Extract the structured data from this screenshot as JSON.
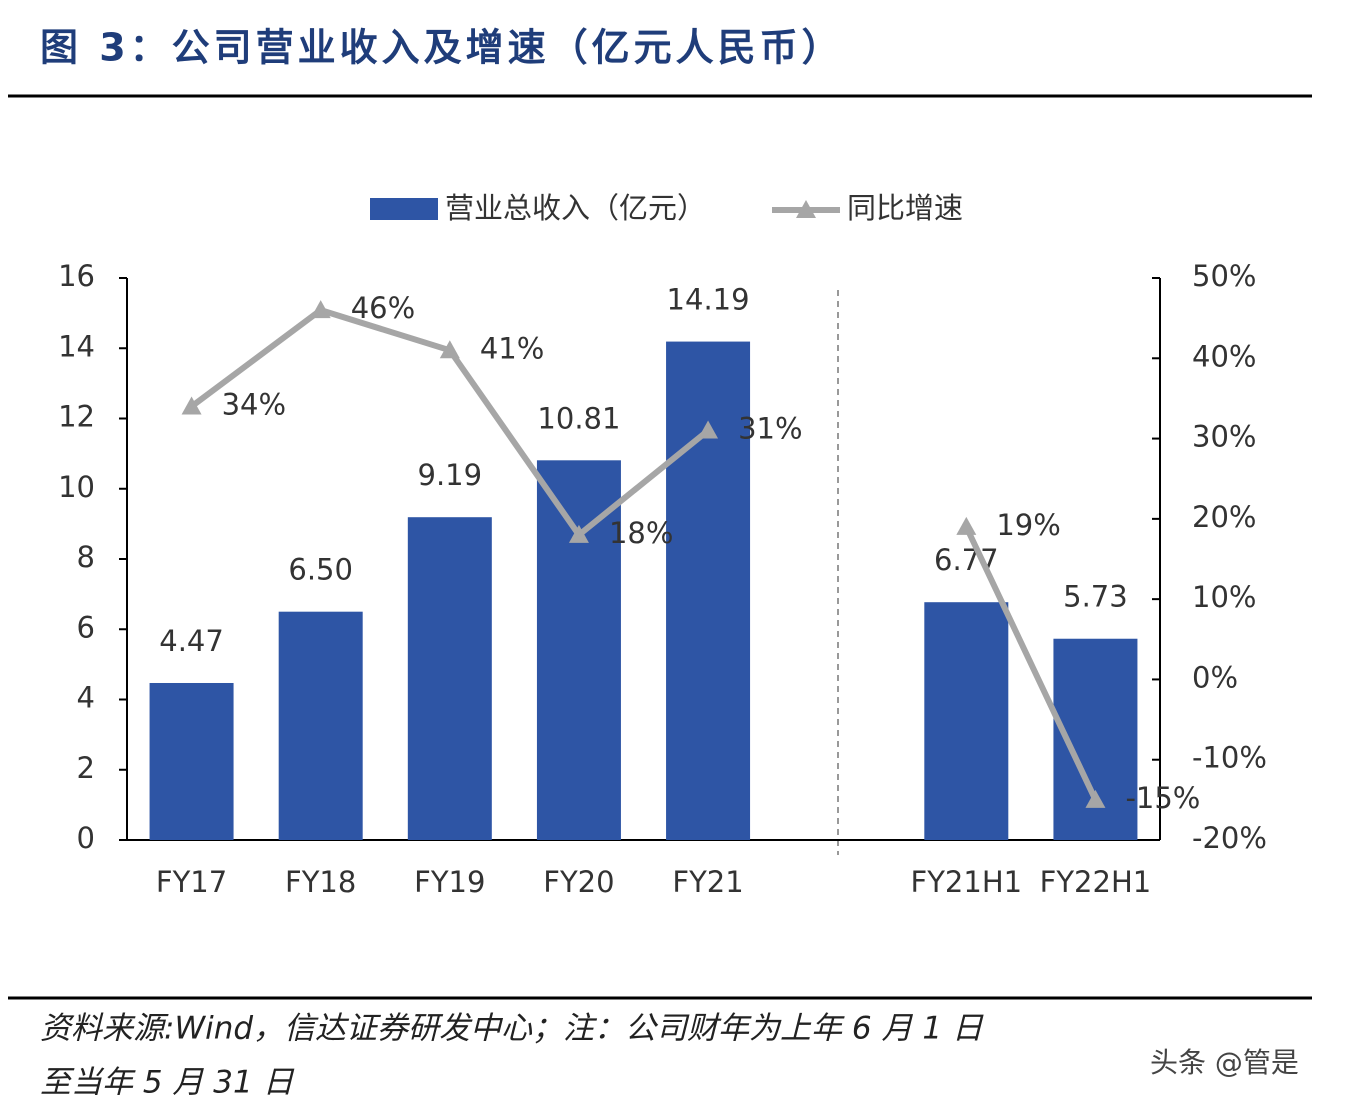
{
  "title": "图 3：公司营业收入及增速（亿元人民币）",
  "source": [
    "资料来源:Wind，信达证券研发中心；注：公司财年为上年 6 月 1 日",
    "至当年 5 月 31 日"
  ],
  "watermark": "头条 @管是",
  "chart_data": {
    "type": "bar",
    "categories": [
      "FY17",
      "FY18",
      "FY19",
      "FY20",
      "FY21",
      null,
      "FY21H1",
      "FY22H1"
    ],
    "series": [
      {
        "name": "营业总收入（亿元）",
        "type": "bar",
        "color": "#2e55a5",
        "values": [
          4.47,
          6.5,
          9.19,
          10.81,
          14.19,
          null,
          6.77,
          5.73
        ],
        "value_labels": [
          "4.47",
          "6.50",
          "9.19",
          "10.81",
          "14.19",
          null,
          "6.77",
          "5.73"
        ]
      },
      {
        "name": "同比增速",
        "type": "line",
        "axis": "y2",
        "color": "#a6a6a6",
        "values": [
          34,
          46,
          41,
          18,
          31,
          null,
          19,
          -15
        ],
        "value_labels": [
          "34%",
          "46%",
          "41%",
          "18%",
          "31%",
          null,
          "19%",
          "-15%"
        ]
      }
    ],
    "ylim": [
      0,
      16
    ],
    "yticks": [
      0,
      2,
      4,
      6,
      8,
      10,
      12,
      14,
      16
    ],
    "y2lim": [
      -20,
      50
    ],
    "y2ticks": [
      {
        "value": -20,
        "label": "-20%"
      },
      {
        "value": -10,
        "label": "-10%"
      },
      {
        "value": 0,
        "label": "0%"
      },
      {
        "value": 10,
        "label": "10%"
      },
      {
        "value": 20,
        "label": "20%"
      },
      {
        "value": 30,
        "label": "30%"
      },
      {
        "value": 40,
        "label": "40%"
      },
      {
        "value": 50,
        "label": "50%"
      }
    ],
    "legend": "top"
  }
}
